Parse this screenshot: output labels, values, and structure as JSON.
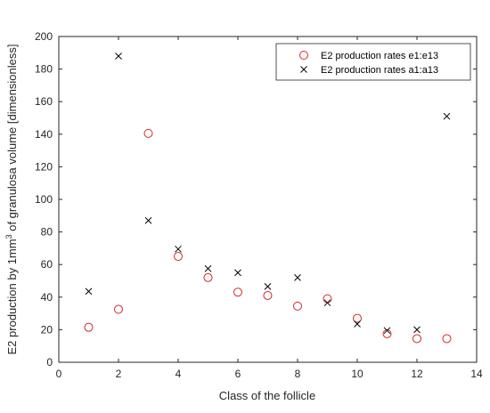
{
  "chart_data": {
    "type": "scatter",
    "xlabel": "Class of the follicle",
    "ylabel_prefix": "E2 production by 1mm",
    "ylabel_sup": "3",
    "ylabel_suffix": " of granulosa volume [dimensionless]",
    "xlim": [
      0,
      14
    ],
    "ylim": [
      0,
      200
    ],
    "x_ticks": [
      0,
      2,
      4,
      6,
      8,
      10,
      12,
      14
    ],
    "y_ticks": [
      0,
      20,
      40,
      60,
      80,
      100,
      120,
      140,
      160,
      180,
      200
    ],
    "grid": false,
    "legend_position": "top-right",
    "series": [
      {
        "name": "E2 production rates e1:e13",
        "marker": "circle",
        "color": "#d62728",
        "x": [
          1,
          2,
          3,
          4,
          5,
          6,
          7,
          8,
          9,
          10,
          11,
          12,
          13
        ],
        "y": [
          21.5,
          32.5,
          140.5,
          65,
          52,
          43,
          41,
          34.5,
          39,
          27,
          17.5,
          14.5,
          14.5
        ]
      },
      {
        "name": "E2 production rates a1:a13",
        "marker": "x",
        "color": "#000000",
        "x": [
          1,
          2,
          3,
          4,
          5,
          6,
          7,
          8,
          9,
          10,
          11,
          12,
          13
        ],
        "y": [
          43.5,
          188,
          87,
          69.5,
          57.5,
          55,
          46.5,
          52,
          36.5,
          23.5,
          19.5,
          20,
          151
        ]
      }
    ]
  }
}
